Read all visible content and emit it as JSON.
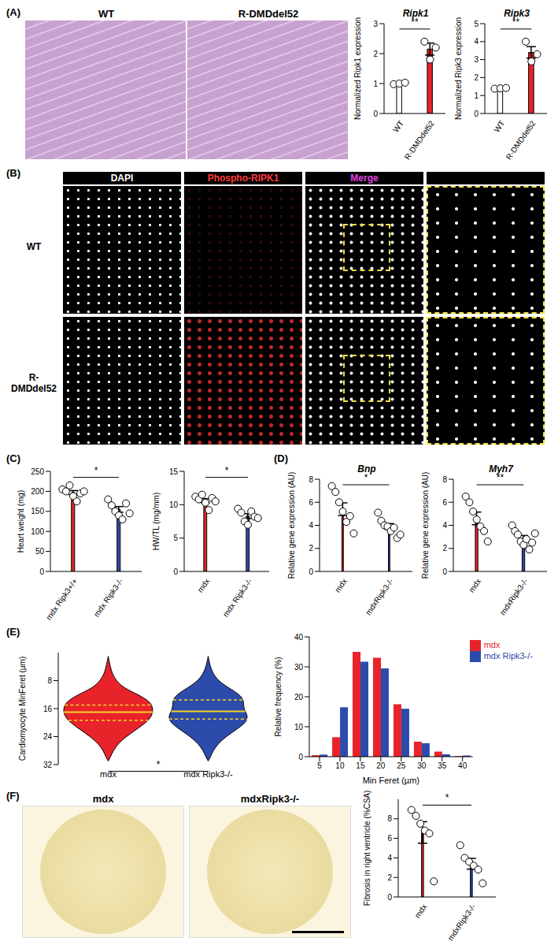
{
  "panels": {
    "labels": [
      "(A)",
      "(B)",
      "(C)",
      "(D)",
      "(E)",
      "(F)"
    ],
    "histology": {
      "titles": [
        "WT",
        "R-DMDdel52"
      ]
    },
    "immunofluorescence": {
      "columns": [
        "DAPI",
        "Phospho-RIPK1",
        "Merge"
      ],
      "rows": [
        "WT",
        "R-DMDdel52"
      ]
    },
    "fibrosis_sections": {
      "titles": [
        "mdx",
        "mdxRipk3-/-"
      ]
    }
  },
  "chart_data": [
    {
      "type": "bar",
      "title": "Ripk1",
      "ylabel": "Normalized Ripk1 expression",
      "categories": [
        "WT",
        "R-DMDdel52"
      ],
      "values": [
        1.0,
        2.15
      ],
      "errors": [
        0.02,
        0.2
      ],
      "points": [
        [
          0.98,
          1.0,
          1.03
        ],
        [
          2.4,
          1.8,
          2.2
        ]
      ],
      "colors": [
        "#ffffff",
        "#e8232a"
      ],
      "ylim": [
        0,
        3
      ],
      "yticks": [
        0,
        1,
        2,
        3
      ],
      "annotations": [
        "**"
      ]
    },
    {
      "type": "bar",
      "title": "Ripk3",
      "ylabel": "Normalized Ripk3 expression",
      "categories": [
        "WT",
        "R-DMDdel52"
      ],
      "values": [
        1.4,
        3.4
      ],
      "errors": [
        0.02,
        0.32
      ],
      "points": [
        [
          1.38,
          1.4,
          1.42
        ],
        [
          4.0,
          2.9,
          3.3
        ]
      ],
      "colors": [
        "#ffffff",
        "#e8232a"
      ],
      "ylim": [
        0,
        5
      ],
      "yticks": [
        0,
        1,
        2,
        3,
        4,
        5
      ],
      "annotations": [
        "**"
      ]
    },
    {
      "type": "bar",
      "ylabel": "Heart weight (mg)",
      "categories": [
        "mdx Ripk3+/+",
        "mdx Ripk3-/-"
      ],
      "values": [
        197,
        155
      ],
      "errors": [
        5,
        7
      ],
      "points": [
        [
          205,
          200,
          215,
          188,
          175,
          195,
          200
        ],
        [
          180,
          165,
          150,
          140,
          130,
          170,
          145
        ]
      ],
      "colors": [
        "#e8232a",
        "#2d4bab"
      ],
      "ylim": [
        0,
        250
      ],
      "yticks": [
        0,
        50,
        100,
        150,
        200,
        250
      ],
      "annotations": [
        "*"
      ]
    },
    {
      "type": "bar",
      "ylabel": "HW/TL (mg/mm)",
      "categories": [
        "mdx",
        "mdx Ripk3-/-"
      ],
      "values": [
        10.6,
        8.3
      ],
      "errors": [
        0.3,
        0.35
      ],
      "points": [
        [
          11.2,
          10.8,
          11.5,
          10.3,
          9.2,
          11.0,
          10.5
        ],
        [
          9.4,
          8.8,
          7.5,
          7.0,
          9.0,
          8.2,
          8.0
        ]
      ],
      "colors": [
        "#e8232a",
        "#2d4bab"
      ],
      "ylim": [
        0,
        15
      ],
      "yticks": [
        0,
        5,
        10,
        15
      ],
      "annotations": [
        "*"
      ]
    },
    {
      "type": "bar",
      "title": "Bnp",
      "ylabel": "Relative gene expression (AU)",
      "categories": [
        "mdx",
        "mdxRipk3-/-"
      ],
      "values": [
        5.4,
        3.9
      ],
      "errors": [
        0.55,
        0.25
      ],
      "points": [
        [
          7.4,
          6.9,
          6.0,
          5.2,
          4.3,
          4.8,
          3.3
        ],
        [
          5.1,
          4.4,
          4.0,
          3.9,
          3.5,
          3.8,
          2.9,
          3.2
        ]
      ],
      "colors": [
        "#e8232a",
        "#2d4bab"
      ],
      "ylim": [
        0,
        8
      ],
      "yticks": [
        0,
        2,
        4,
        6,
        8
      ],
      "annotations": [
        "*"
      ]
    },
    {
      "type": "bar",
      "title": "Myh7",
      "ylabel": "Relative gene expression (AU)",
      "categories": [
        "mdx",
        "mdxRipk3-/-"
      ],
      "values": [
        4.6,
        2.9
      ],
      "errors": [
        0.55,
        0.22
      ],
      "points": [
        [
          6.5,
          6.0,
          5.2,
          4.5,
          3.9,
          3.5,
          2.6
        ],
        [
          4.0,
          3.5,
          3.2,
          2.6,
          2.3,
          2.8,
          1.9,
          2.5,
          3.3
        ]
      ],
      "colors": [
        "#e8232a",
        "#2d4bab"
      ],
      "ylim": [
        0,
        8
      ],
      "yticks": [
        0,
        2,
        4,
        6,
        8
      ],
      "annotations": [
        "**"
      ]
    },
    {
      "type": "violin",
      "ylabel": "Cardiomyocyte MinFeret (µm)",
      "ylim": [
        0,
        32
      ],
      "yticks": [
        8,
        16,
        24,
        32
      ],
      "annotations": [
        "*"
      ],
      "profile_y": [
        1,
        4,
        6,
        8,
        10,
        12,
        14,
        16,
        18,
        20,
        22,
        24,
        26,
        28,
        30,
        31
      ],
      "series": [
        {
          "name": "mdx",
          "color": "#e8232a",
          "widths": [
            0,
            0.02,
            0.04,
            0.08,
            0.15,
            0.3,
            0.42,
            0.45,
            0.44,
            0.38,
            0.28,
            0.18,
            0.1,
            0.05,
            0.02,
            0
          ],
          "median": 17,
          "quartiles": [
            15,
            19.4
          ]
        },
        {
          "name": "mdx Ripk3-/-",
          "color": "#2d4bab",
          "widths": [
            0,
            0.02,
            0.05,
            0.1,
            0.2,
            0.32,
            0.36,
            0.35,
            0.4,
            0.38,
            0.28,
            0.18,
            0.1,
            0.05,
            0.02,
            0
          ],
          "median": 16.8,
          "quartiles": [
            13.5,
            19
          ]
        }
      ]
    },
    {
      "type": "bar",
      "xlabel": "Min Feret (µm)",
      "ylabel": "Relative frequency (%)",
      "categories": [
        "5",
        "10",
        "15",
        "20",
        "25",
        "30",
        "35",
        "40"
      ],
      "series": [
        {
          "name": "mdx",
          "color": "#e8232a",
          "values": [
            0.5,
            6.5,
            35,
            33,
            17.5,
            5,
            1.7,
            0.2
          ]
        },
        {
          "name": "mdx Ripk3-/-",
          "color": "#2d4bab",
          "values": [
            0.7,
            16.5,
            31.7,
            29.5,
            16,
            4.5,
            0.8,
            0.4
          ]
        }
      ],
      "ylim": [
        0,
        40
      ],
      "yticks": [
        0,
        10,
        20,
        30,
        40
      ],
      "legend": "top-right"
    },
    {
      "type": "bar",
      "ylabel": "Fibrosis in right ventricle (%CSA)",
      "categories": [
        "mdx",
        "mdxRipk3-/-"
      ],
      "values": [
        6.6,
        3.4
      ],
      "errors": [
        1.1,
        0.55
      ],
      "points": [
        [
          8.9,
          8.3,
          7.5,
          6.8,
          6.5,
          1.6
        ],
        [
          5.3,
          4.0,
          3.6,
          3.2,
          2.8,
          1.4
        ]
      ],
      "colors": [
        "#e8232a",
        "#2d4bab"
      ],
      "ylim": [
        0,
        10
      ],
      "yticks": [
        0,
        2,
        4,
        6,
        8
      ],
      "annotations": [
        "*"
      ]
    }
  ]
}
